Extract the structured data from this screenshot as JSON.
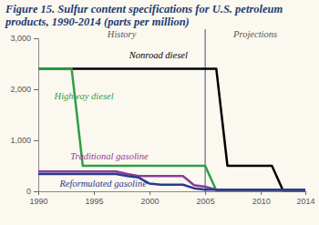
{
  "chart_data": {
    "type": "line",
    "title": "Figure 15. Sulfur content specifications for U.S. petroleum products, 1990-2014 (parts per million)",
    "x": [
      1990,
      1991,
      1992,
      1993,
      1994,
      1995,
      1996,
      1997,
      1998,
      1999,
      2000,
      2001,
      2002,
      2003,
      2004,
      2005,
      2006,
      2007,
      2008,
      2009,
      2010,
      2011,
      2012,
      2013,
      2014
    ],
    "series": [
      {
        "name": "Nonroad diesel",
        "color": "#000000",
        "values": [
          2400,
          2400,
          2400,
          2400,
          2400,
          2400,
          2400,
          2400,
          2400,
          2400,
          2400,
          2400,
          2400,
          2400,
          2400,
          2400,
          2400,
          500,
          500,
          500,
          500,
          500,
          15,
          15,
          15
        ]
      },
      {
        "name": "Highway diesel",
        "color": "#2e9e48",
        "values": [
          2400,
          2400,
          2400,
          2400,
          500,
          500,
          500,
          500,
          500,
          500,
          500,
          500,
          500,
          500,
          500,
          500,
          15,
          15,
          15,
          15,
          15,
          15,
          15,
          15,
          15
        ]
      },
      {
        "name": "Traditional gasoline",
        "color": "#8a3c9a",
        "values": [
          390,
          390,
          390,
          390,
          390,
          390,
          390,
          390,
          340,
          300,
          300,
          300,
          300,
          300,
          120,
          90,
          30,
          30,
          30,
          30,
          30,
          30,
          30,
          30,
          30
        ]
      },
      {
        "name": "Reformulated gasoline",
        "color": "#2a3a8f",
        "values": [
          340,
          340,
          340,
          340,
          340,
          340,
          340,
          340,
          300,
          270,
          150,
          130,
          130,
          130,
          60,
          30,
          30,
          30,
          30,
          30,
          30,
          30,
          30,
          30,
          30
        ]
      }
    ],
    "xlim": [
      1990,
      2014
    ],
    "xticks": [
      1990,
      1995,
      2000,
      2005,
      2010,
      2014
    ],
    "ylim": [
      0,
      3000
    ],
    "yticks": [
      0,
      {
        "value": 1000,
        "label": "1,000"
      },
      {
        "value": 2000,
        "label": "2,000"
      },
      {
        "value": 3000,
        "label": "3,000"
      }
    ],
    "grid": false,
    "annotations": [
      "History",
      "Projections"
    ],
    "projection_start": 2005
  }
}
